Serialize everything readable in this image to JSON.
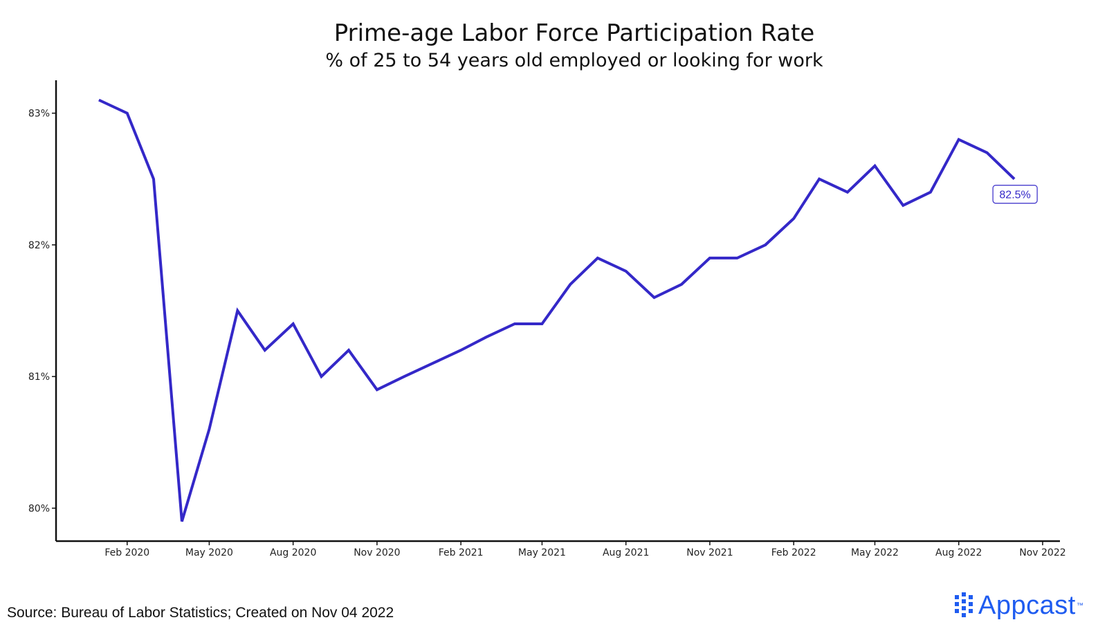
{
  "chart_data": {
    "type": "line",
    "title": "Prime-age Labor Force Participation Rate",
    "subtitle": "% of 25 to 54 years old employed or looking for work",
    "x_tick_labels": [
      "Feb 2020",
      "May 2020",
      "Aug 2020",
      "Nov 2020",
      "Feb 2021",
      "May 2021",
      "Aug 2021",
      "Nov 2021",
      "Feb 2022",
      "May 2022",
      "Aug 2022",
      "Nov 2022"
    ],
    "y_tick_labels": [
      "80%",
      "81%",
      "82%",
      "83%"
    ],
    "y_ticks": [
      80,
      81,
      82,
      83
    ],
    "ylim": [
      79.75,
      83.25
    ],
    "xlim": [
      "2019-11-15",
      "2022-11-20"
    ],
    "x": [
      "2020-01",
      "2020-02",
      "2020-03",
      "2020-04",
      "2020-05",
      "2020-06",
      "2020-07",
      "2020-08",
      "2020-09",
      "2020-10",
      "2020-11",
      "2020-12",
      "2021-01",
      "2021-02",
      "2021-03",
      "2021-04",
      "2021-05",
      "2021-06",
      "2021-07",
      "2021-08",
      "2021-09",
      "2021-10",
      "2021-11",
      "2021-12",
      "2022-01",
      "2022-02",
      "2022-03",
      "2022-04",
      "2022-05",
      "2022-06",
      "2022-07",
      "2022-08",
      "2022-09",
      "2022-10"
    ],
    "series": [
      {
        "values": [
          83.1,
          83.0,
          82.5,
          79.9,
          80.6,
          81.5,
          81.2,
          81.4,
          81.0,
          81.2,
          80.9,
          81.0,
          81.1,
          81.2,
          81.3,
          81.4,
          81.4,
          81.7,
          81.9,
          81.8,
          81.6,
          81.7,
          81.9,
          81.9,
          82.0,
          82.2,
          82.5,
          82.4,
          82.6,
          82.3,
          82.4,
          82.8,
          82.7,
          82.5
        ],
        "color": "#3428c8"
      }
    ],
    "last_value_label": "82.5%",
    "grid": false,
    "legend": "none"
  },
  "source_text": "Source: Bureau of Labor Statistics; Created on Nov 04 2022",
  "brand": {
    "name": "Appcast",
    "tm": "™",
    "color": "#1f5cf0"
  }
}
